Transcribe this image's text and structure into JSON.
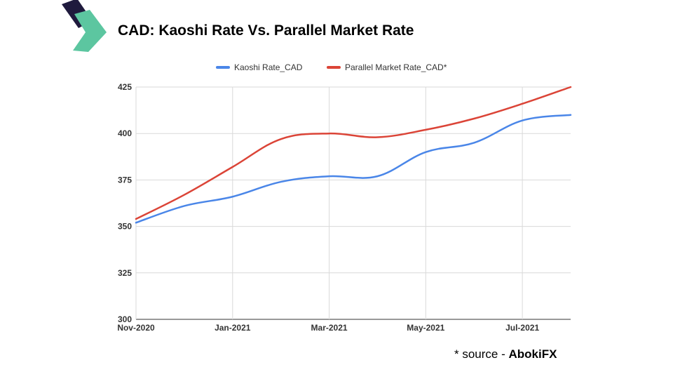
{
  "header": {
    "title": "CAD: Kaoshi Rate Vs. Parallel Market Rate",
    "brand_colors": {
      "dark": "#1f1a3d",
      "green": "#5cc6a0"
    }
  },
  "footer": {
    "source_prefix": "* source - ",
    "source_name": "AbokiFX"
  },
  "chart_data": {
    "type": "line",
    "title": "",
    "xlabel": "",
    "ylabel": "",
    "x_tick_labels": [
      "Nov-2020",
      "Jan-2021",
      "Mar-2021",
      "May-2021",
      "Jul-2021"
    ],
    "x_tick_indices": [
      0,
      2,
      4,
      6,
      8
    ],
    "x_points": 10,
    "ylim": [
      300,
      425
    ],
    "y_ticks": [
      "300",
      "325",
      "350",
      "375",
      "400",
      "425"
    ],
    "grid": true,
    "legend_position": "top",
    "series": [
      {
        "name": "Kaoshi Rate_CAD",
        "color": "#4a86e8",
        "values": [
          352,
          361,
          366,
          374,
          377,
          377,
          390,
          395,
          407,
          410
        ]
      },
      {
        "name": "Parallel Market Rate_CAD*",
        "color": "#db4437",
        "values": [
          354,
          367,
          382,
          397,
          400,
          398,
          402,
          408,
          416,
          425
        ]
      }
    ]
  }
}
